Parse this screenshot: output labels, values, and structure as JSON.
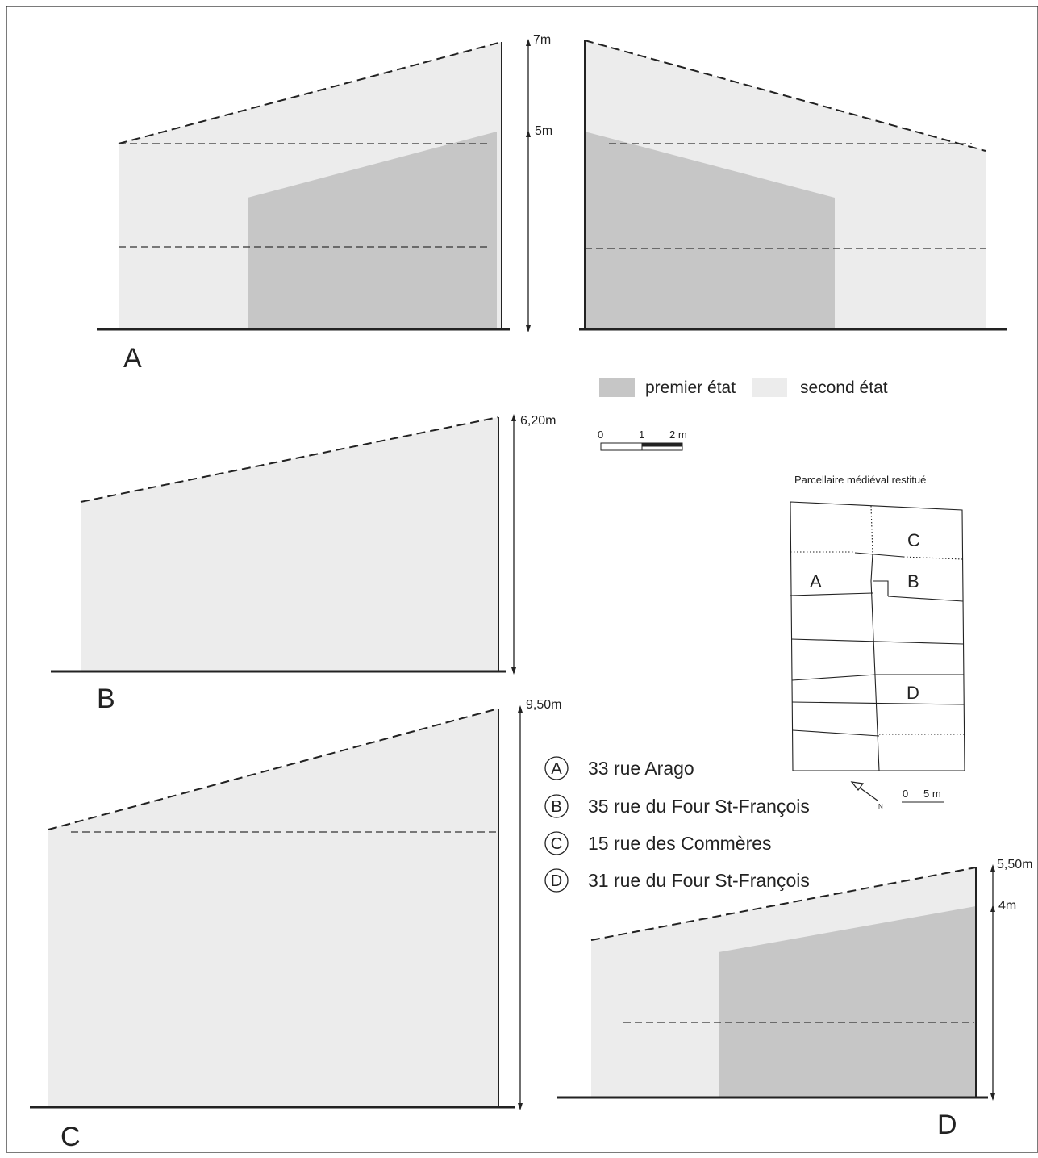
{
  "panels": {
    "A": {
      "letter": "A",
      "heights": [
        {
          "label": "7m",
          "value_m": 7
        },
        {
          "label": "5m",
          "value_m": 5
        }
      ]
    },
    "B": {
      "letter": "B",
      "heights": [
        {
          "label": "6,20m",
          "value_m": 6.2
        }
      ]
    },
    "C": {
      "letter": "C",
      "heights": [
        {
          "label": "9,50m",
          "value_m": 9.5
        }
      ]
    },
    "D": {
      "letter": "D",
      "heights": [
        {
          "label": "5,50m",
          "value_m": 5.5
        },
        {
          "label": "4m",
          "value_m": 4
        }
      ]
    }
  },
  "legend": {
    "first_label": "premier état",
    "second_label": "second état",
    "first_color": "#c6c6c6",
    "second_color": "#ececec"
  },
  "scale_bar": {
    "tick_0": "0",
    "tick_1": "1",
    "tick_2": "2 m"
  },
  "parcel_map": {
    "title": "Parcellaire médiéval restitué",
    "labels": {
      "A": "A",
      "B": "B",
      "C": "C",
      "D": "D"
    },
    "scale": {
      "tick_0": "0",
      "tick_5": "5 m"
    },
    "north_icon": "north-arrow-icon",
    "north_letter": "N"
  },
  "key": [
    {
      "letter": "A",
      "address": "33 rue Arago"
    },
    {
      "letter": "B",
      "address": "35 rue du Four St-François"
    },
    {
      "letter": "C",
      "address": "15 rue des Commères"
    },
    {
      "letter": "D",
      "address": "31 rue du Four St-François"
    }
  ]
}
